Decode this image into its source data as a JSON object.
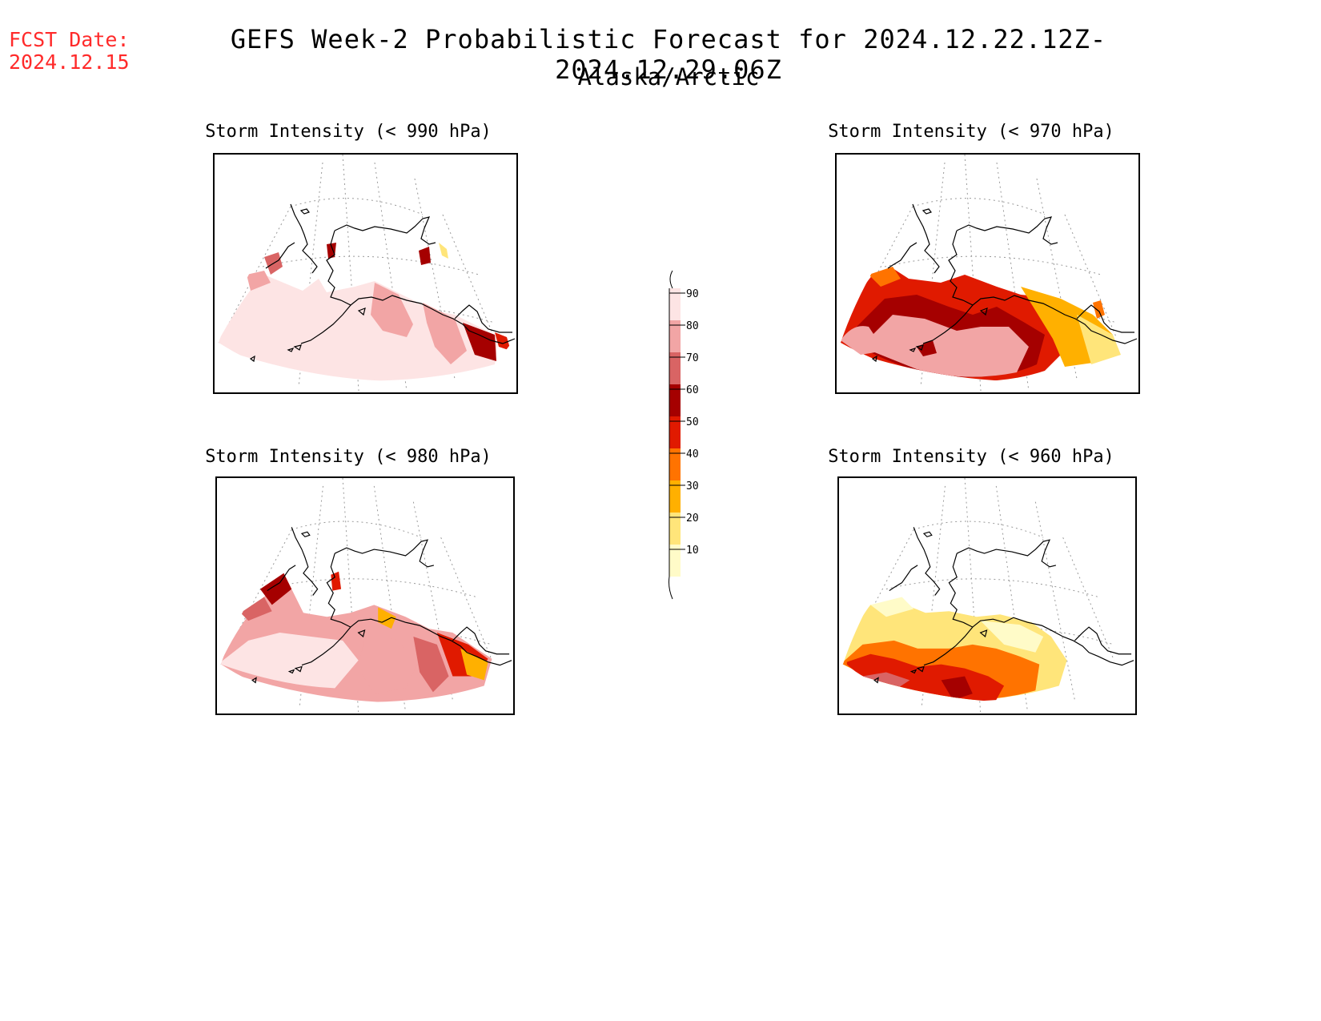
{
  "header": {
    "fcst_label": "FCST Date:",
    "fcst_date": "2024.12.15",
    "title": "GEFS Week-2 Probabilistic Forecast for 2024.12.22.12Z-2024.12.29.06Z",
    "region": "Alaska/Arctic"
  },
  "panels": [
    {
      "id": "p990",
      "title": "Storm Intensity (< 990 hPa)",
      "fill": "high"
    },
    {
      "id": "p970",
      "title": "Storm Intensity (< 970 hPa)",
      "fill": "mid"
    },
    {
      "id": "p980",
      "title": "Storm Intensity (< 980 hPa)",
      "fill": "high2"
    },
    {
      "id": "p960",
      "title": "Storm Intensity (< 960 hPa)",
      "fill": "low"
    }
  ],
  "colorbar": {
    "levels": [
      {
        "label": "10",
        "color": "#fffbc8"
      },
      {
        "label": "20",
        "color": "#ffe57a"
      },
      {
        "label": "30",
        "color": "#ffb000"
      },
      {
        "label": "40",
        "color": "#ff7300"
      },
      {
        "label": "50",
        "color": "#e01a00"
      },
      {
        "label": "60",
        "color": "#a50000"
      },
      {
        "label": "70",
        "color": "#d96464"
      },
      {
        "label": "80",
        "color": "#f2a5a5"
      },
      {
        "label": "90",
        "color": "#fde4e4"
      }
    ]
  }
}
